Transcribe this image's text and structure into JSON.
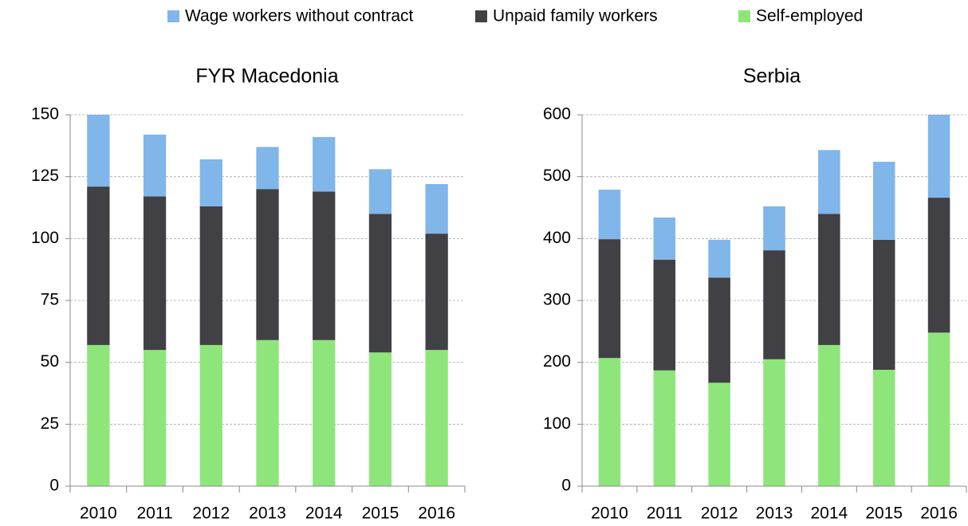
{
  "chart_data": [
    {
      "type": "stacked-bar",
      "title": "FYR Macedonia",
      "categories": [
        "2010",
        "2011",
        "2012",
        "2013",
        "2014",
        "2015",
        "2016"
      ],
      "series": [
        {
          "name": "Self-employed",
          "color": "#8ee67b",
          "values": [
            57,
            55,
            57,
            59,
            59,
            54,
            55
          ]
        },
        {
          "name": "Unpaid family workers",
          "color": "#414045",
          "values": [
            64,
            62,
            56,
            61,
            60,
            56,
            47
          ]
        },
        {
          "name": "Wage workers without contract",
          "color": "#80b6e9",
          "values": [
            29,
            25,
            19,
            17,
            22,
            18,
            20
          ]
        }
      ],
      "ylim": [
        0,
        150
      ],
      "yticks": [
        0,
        25,
        50,
        75,
        100,
        125,
        150
      ],
      "grid": true
    },
    {
      "type": "stacked-bar",
      "title": "Serbia",
      "categories": [
        "2010",
        "2011",
        "2012",
        "2013",
        "2014",
        "2015",
        "2016"
      ],
      "series": [
        {
          "name": "Self-employed",
          "color": "#8ee67b",
          "values": [
            207,
            187,
            167,
            205,
            228,
            188,
            248
          ]
        },
        {
          "name": "Unpaid family workers",
          "color": "#414045",
          "values": [
            192,
            179,
            170,
            176,
            212,
            210,
            218
          ]
        },
        {
          "name": "Wage workers without contract",
          "color": "#80b6e9",
          "values": [
            80,
            68,
            61,
            71,
            103,
            126,
            134
          ]
        }
      ],
      "ylim": [
        0,
        600
      ],
      "yticks": [
        0,
        100,
        200,
        300,
        400,
        500,
        600
      ],
      "grid": true
    }
  ]
}
